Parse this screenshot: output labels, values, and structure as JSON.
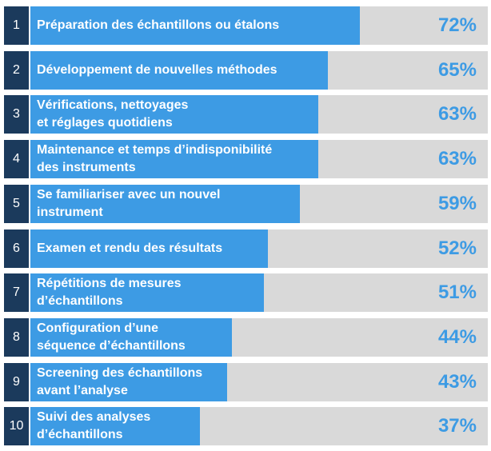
{
  "chart_data": {
    "type": "bar",
    "orientation": "horizontal",
    "unit": "%",
    "xlim": [
      0,
      100
    ],
    "colors": {
      "rank_bg": "#1b3a5c",
      "bar": "#3d9be4",
      "track": "#d9d9d9",
      "value_text": "#3d9be4",
      "label_text": "#ffffff"
    },
    "items": [
      {
        "rank": "1",
        "label": "Préparation des échantillons ou étalons",
        "value": 72,
        "value_label": "72%"
      },
      {
        "rank": "2",
        "label": "Développement de nouvelles méthodes",
        "value": 65,
        "value_label": "65%"
      },
      {
        "rank": "3",
        "label": "Vérifications, nettoyages\net réglages quotidiens",
        "value": 63,
        "value_label": "63%"
      },
      {
        "rank": "4",
        "label": "Maintenance et temps d’indisponibilité\ndes instruments",
        "value": 63,
        "value_label": "63%"
      },
      {
        "rank": "5",
        "label": "Se familiariser avec un nouvel\ninstrument",
        "value": 59,
        "value_label": "59%"
      },
      {
        "rank": "6",
        "label": "Examen et rendu des résultats",
        "value": 52,
        "value_label": "52%"
      },
      {
        "rank": "7",
        "label": "Répétitions de mesures\nd’échantillons",
        "value": 51,
        "value_label": "51%"
      },
      {
        "rank": "8",
        "label": "Configuration d’une\nséquence d’échantillons",
        "value": 44,
        "value_label": "44%"
      },
      {
        "rank": "9",
        "label": "Screening des échantillons\navant l’analyse",
        "value": 43,
        "value_label": "43%"
      },
      {
        "rank": "10",
        "label": "Suivi des analyses\nd’échantillons",
        "value": 37,
        "value_label": "37%"
      }
    ]
  }
}
